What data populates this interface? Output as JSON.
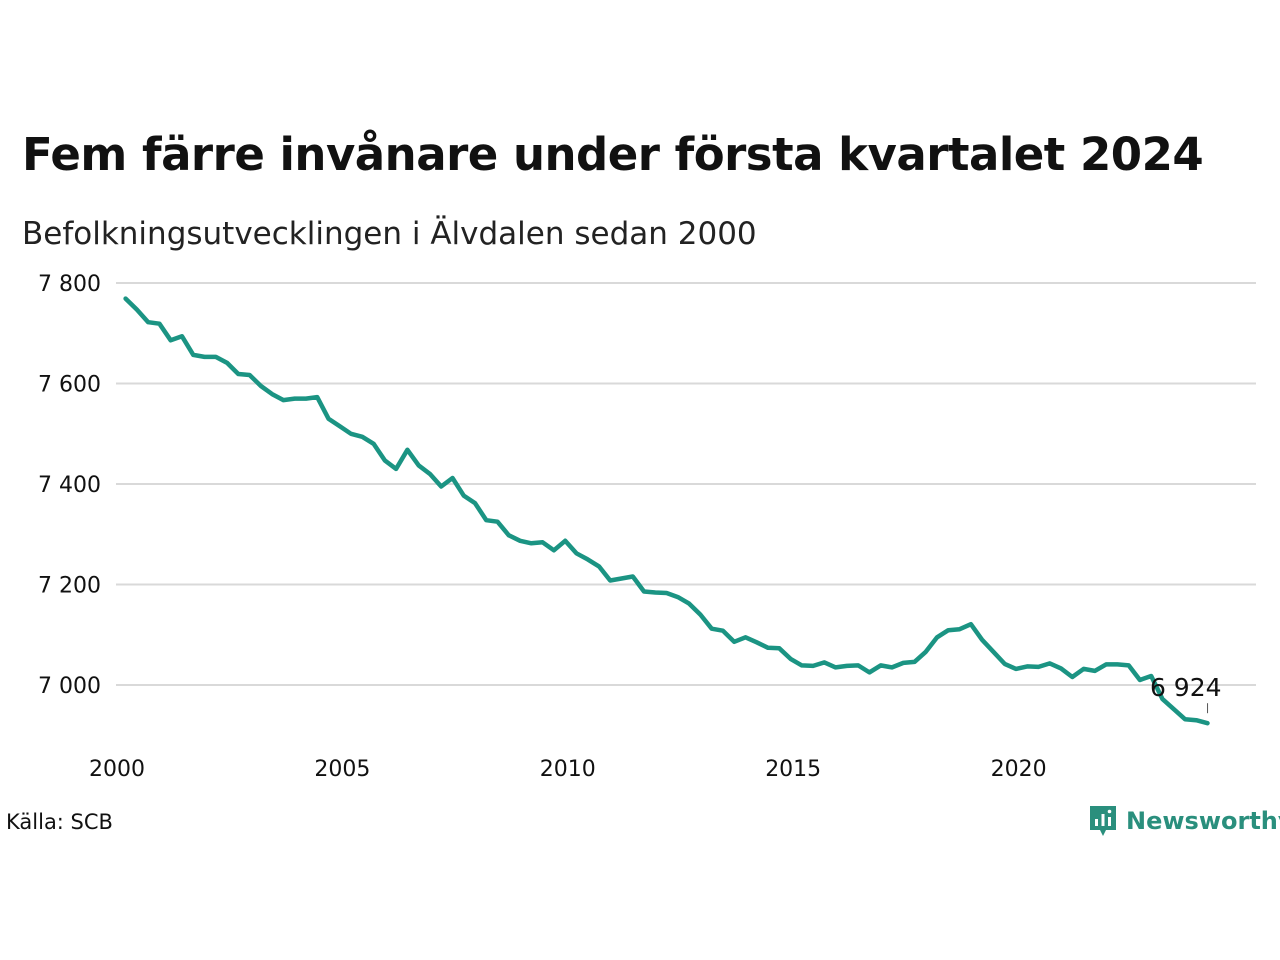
{
  "title": "Fem färre invånare under första kvartalet 2024",
  "subtitle": "Befolkningsutvecklingen i Älvdalen sedan 2000",
  "source": "Källa: SCB",
  "brand": "Newsworthy",
  "colors": {
    "line": "#1b9483",
    "grid": "#d9d9d9",
    "brand": "#2a8f7d"
  },
  "chart_data": {
    "type": "line",
    "title": "Fem färre invånare under första kvartalet 2024",
    "subtitle": "Befolkningsutvecklingen i Älvdalen sedan 2000",
    "xlabel": "",
    "ylabel": "",
    "xlim": [
      2000,
      2025.2
    ],
    "ylim": [
      6880,
      7800
    ],
    "xticks": [
      {
        "value": 2000,
        "label": "2000"
      },
      {
        "value": 2005,
        "label": "2005"
      },
      {
        "value": 2010,
        "label": "2010"
      },
      {
        "value": 2015,
        "label": "2015"
      },
      {
        "value": 2020,
        "label": "2020"
      }
    ],
    "yticks": [
      {
        "value": 7000,
        "label": "7 000"
      },
      {
        "value": 7200,
        "label": "7 200"
      },
      {
        "value": 7400,
        "label": "7 400"
      },
      {
        "value": 7600,
        "label": "7 600"
      },
      {
        "value": 7800,
        "label": "7 800"
      }
    ],
    "grid": true,
    "legend": "none",
    "end_label": "6 924",
    "series": [
      {
        "x": [
          2000.125,
          2000.375,
          2000.625,
          2000.875,
          2001.125,
          2001.375,
          2001.625,
          2001.875,
          2002.125,
          2002.375,
          2002.625,
          2002.875,
          2003.125,
          2003.375,
          2003.625,
          2003.875,
          2004.125,
          2004.375,
          2004.625,
          2004.875,
          2005.125,
          2005.375,
          2005.625,
          2005.875,
          2006.125,
          2006.375,
          2006.625,
          2006.875,
          2007.125,
          2007.375,
          2007.625,
          2007.875,
          2008.125,
          2008.375,
          2008.625,
          2008.875,
          2009.125,
          2009.375,
          2009.625,
          2009.875,
          2010.125,
          2010.375,
          2010.625,
          2010.875,
          2011.125,
          2011.375,
          2011.625,
          2011.875,
          2012.125,
          2012.375,
          2012.625,
          2012.875,
          2013.125,
          2013.375,
          2013.625,
          2013.875,
          2014.125,
          2014.375,
          2014.625,
          2014.875,
          2015.125,
          2015.375,
          2015.625,
          2015.875,
          2016.125,
          2016.375,
          2016.625,
          2016.875,
          2017.125,
          2017.375,
          2017.625,
          2017.875,
          2018.125,
          2018.375,
          2018.625,
          2018.875,
          2019.125,
          2019.375,
          2019.625,
          2019.875,
          2020.125,
          2020.375,
          2020.625,
          2020.875,
          2021.125,
          2021.375,
          2021.625,
          2021.875,
          2022.125,
          2022.375,
          2022.625,
          2022.875,
          2023.125,
          2023.375,
          2023.625,
          2023.875,
          2024.125
        ],
        "y": [
          7769,
          7747,
          7722,
          7719,
          7686,
          7694,
          7657,
          7653,
          7653,
          7641,
          7619,
          7617,
          7595,
          7579,
          7567,
          7570,
          7570,
          7573,
          7530,
          7515,
          7500,
          7494,
          7480,
          7447,
          7430,
          7468,
          7437,
          7420,
          7395,
          7412,
          7377,
          7362,
          7328,
          7325,
          7298,
          7287,
          7282,
          7284,
          7268,
          7287,
          7262,
          7250,
          7236,
          7208,
          7212,
          7216,
          7186,
          7184,
          7183,
          7175,
          7162,
          7140,
          7112,
          7108,
          7086,
          7095,
          7085,
          7074,
          7073,
          7052,
          7039,
          7038,
          7045,
          7035,
          7038,
          7039,
          7025,
          7039,
          7035,
          7044,
          7046,
          7066,
          7095,
          7109,
          7111,
          7121,
          7090,
          7066,
          7042,
          7032,
          7037,
          7036,
          7043,
          7033,
          7016,
          7032,
          7028,
          7041,
          7041,
          7039,
          7010,
          7018,
          6972,
          6952,
          6932,
          6930,
          6924
        ]
      }
    ]
  }
}
